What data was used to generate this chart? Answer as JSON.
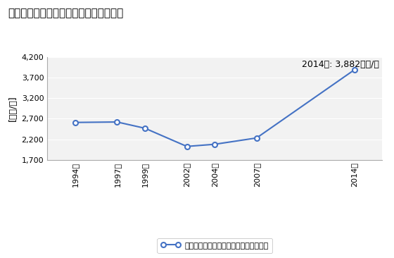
{
  "title": "商業の従業者一人当たり年間商品販売額",
  "ylabel": "[万円/人]",
  "annotation": "2014年: 3,882万円/人",
  "years": [
    1994,
    1997,
    1999,
    2002,
    2004,
    2007,
    2014
  ],
  "year_labels": [
    "1994年",
    "1997年",
    "1999年",
    "2002年",
    "2004年",
    "2007年",
    "2014年"
  ],
  "values": [
    2609,
    2620,
    2468,
    2028,
    2080,
    2233,
    3882
  ],
  "ylim": [
    1700,
    4200
  ],
  "yticks": [
    1700,
    2200,
    2700,
    3200,
    3700,
    4200
  ],
  "legend_label": "商業の従業者一人当たり年間商品販売額",
  "line_color": "#4472C4",
  "marker_color": "#4472C4",
  "bg_color": "#FFFFFF",
  "plot_bg_color": "#F2F2F2",
  "title_fontsize": 11,
  "label_fontsize": 9,
  "annotation_fontsize": 9,
  "legend_fontsize": 8,
  "tick_fontsize": 8
}
